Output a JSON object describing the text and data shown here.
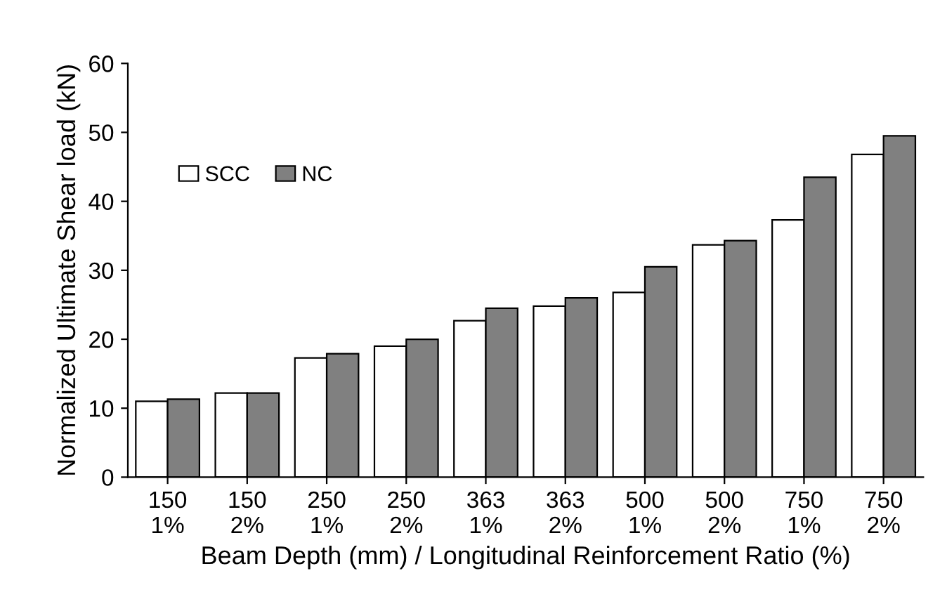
{
  "chart_data": {
    "type": "bar",
    "xlabel": "Beam Depth (mm) / Longitudinal Reinforcement Ratio (%)",
    "ylabel": "Normalized Ultimate Shear load (kN)",
    "categories": [
      "150\n1%",
      "150\n2%",
      "250\n1%",
      "250\n2%",
      "363\n1%",
      "363\n2%",
      "500\n1%",
      "500\n2%",
      "750\n1%",
      "750\n2%"
    ],
    "series": [
      {
        "name": "SCC",
        "color": "#ffffff",
        "values": [
          11.0,
          12.2,
          17.3,
          19.0,
          22.7,
          24.8,
          26.8,
          33.7,
          37.3,
          46.8
        ]
      },
      {
        "name": "NC",
        "color": "#808080",
        "values": [
          11.3,
          12.2,
          17.9,
          20.0,
          24.5,
          26.0,
          30.5,
          34.3,
          43.5,
          49.5
        ]
      }
    ],
    "ylim": [
      0,
      60
    ],
    "yticks": [
      0,
      10,
      20,
      30,
      40,
      50,
      60
    ],
    "grid": false,
    "legend": "top left"
  }
}
